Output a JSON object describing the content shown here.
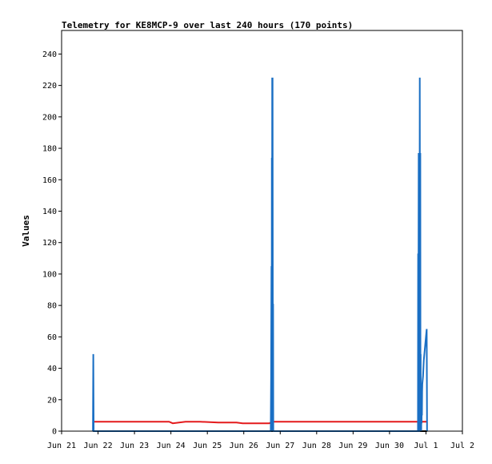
{
  "chart_data": {
    "type": "line",
    "title": "Telemetry for KE8MCP-9 over last 240 hours (170 points)",
    "xlabel": "",
    "ylabel": "Values",
    "x_unit": "days",
    "xlim": [
      0,
      11
    ],
    "ylim": [
      0,
      255
    ],
    "x_tick_values": [
      0,
      1,
      2,
      3,
      4,
      5,
      6,
      7,
      8,
      9,
      10,
      11
    ],
    "x_tick_labels": [
      "Jun 21",
      "Jun 22",
      "Jun 23",
      "Jun 24",
      "Jun 25",
      "Jun 26",
      "Jun 27",
      "Jun 28",
      "Jun 29",
      "Jun 30",
      "Jul 1",
      "Jul 2"
    ],
    "y_ticks": [
      0,
      20,
      40,
      60,
      80,
      100,
      120,
      140,
      160,
      180,
      200,
      220,
      240
    ],
    "grid": false,
    "legend": "none",
    "colors": {
      "series_blue": "#1a6fc4",
      "series_red": "#e41a1c",
      "series_black": "#000000"
    },
    "series": [
      {
        "color": "#000000",
        "x": [
          0.87,
          10.03
        ],
        "y": [
          0,
          0
        ]
      },
      {
        "color": "#e41a1c",
        "x": [
          0.87,
          1.3,
          1.8,
          2.3,
          2.95,
          3.05,
          3.4,
          3.5,
          3.8,
          4.3,
          4.8,
          4.97,
          5.3,
          5.7,
          5.8,
          6.2,
          7.0,
          8.0,
          9.0,
          9.5,
          9.8,
          10.03
        ],
        "y": [
          6,
          6,
          6,
          6,
          6,
          5,
          6,
          6,
          6,
          5.5,
          5.5,
          5,
          5,
          5,
          6,
          6,
          6,
          6,
          6,
          6,
          6,
          6
        ]
      },
      {
        "color": "#1a6fc4",
        "x": [
          0.86,
          0.87,
          0.88,
          0.89,
          5.74,
          5.75,
          5.76,
          5.765,
          5.77,
          5.775,
          5.78,
          5.785,
          5.79,
          5.8,
          5.805,
          5.81,
          5.82,
          5.83,
          5.84,
          5.85,
          5.86,
          9.78,
          9.785,
          9.79,
          9.8,
          9.805,
          9.81,
          9.82,
          9.83,
          9.84,
          9.845,
          9.85,
          9.855,
          9.86,
          9.865,
          9.87,
          9.875,
          9.88,
          9.885,
          9.89,
          9.895,
          9.9,
          9.92,
          9.94,
          9.96,
          9.98,
          10.0,
          10.02,
          10.03
        ],
        "y": [
          0,
          49,
          0,
          0,
          0,
          35,
          105,
          0,
          174,
          0,
          225,
          0,
          225,
          0,
          81,
          0,
          0,
          0,
          0,
          0,
          0,
          0,
          113,
          0,
          177,
          0,
          0,
          0,
          225,
          0,
          177,
          0,
          49,
          0,
          10,
          0,
          15,
          5,
          20,
          10,
          25,
          30,
          35,
          45,
          50,
          55,
          60,
          65,
          0
        ]
      }
    ]
  }
}
